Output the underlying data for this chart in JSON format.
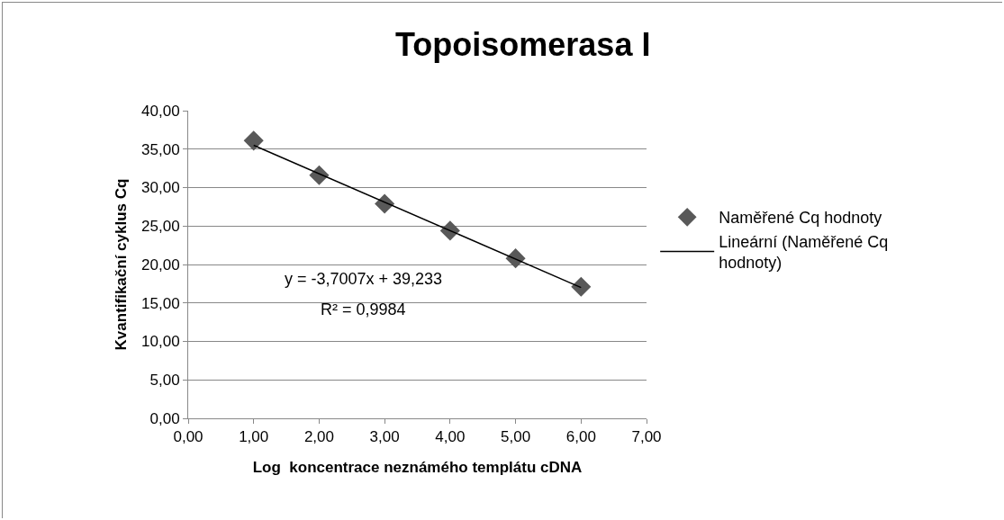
{
  "chart_data": {
    "type": "scatter",
    "title": "Topoisomerasa I",
    "xlabel": "Log  koncentrace neznámého templátu cDNA",
    "ylabel": "Kvantifikační cyklus Cq",
    "x": [
      1,
      2,
      3,
      4,
      5,
      6
    ],
    "series": [
      {
        "name": "Naměřené Cq hodnoty",
        "color": "#595959",
        "values": [
          36.1,
          31.6,
          27.9,
          24.4,
          20.8,
          17.1
        ],
        "marker": "diamond"
      },
      {
        "name": "Lineární (Naměřené Cq hodnoty)",
        "type": "line",
        "color": "#000000",
        "x": [
          1,
          6
        ],
        "values": [
          35.5,
          17.0
        ],
        "marker": "none",
        "line_style": "solid"
      }
    ],
    "annotations": [
      "y = -3,7007x + 39,233",
      "R² = 0,9984"
    ],
    "xlim": [
      0,
      7
    ],
    "xticks": [
      {
        "value": 0,
        "label": "0,00"
      },
      {
        "value": 1,
        "label": "1,00"
      },
      {
        "value": 2,
        "label": "2,00"
      },
      {
        "value": 3,
        "label": "3,00"
      },
      {
        "value": 4,
        "label": "4,00"
      },
      {
        "value": 5,
        "label": "5,00"
      },
      {
        "value": 6,
        "label": "6,00"
      },
      {
        "value": 7,
        "label": "7,00"
      }
    ],
    "ylim": [
      0,
      40
    ],
    "yticks": [
      {
        "value": 0,
        "label": "0,00"
      },
      {
        "value": 5,
        "label": "5,00"
      },
      {
        "value": 10,
        "label": "10,00"
      },
      {
        "value": 15,
        "label": "15,00"
      },
      {
        "value": 20,
        "label": "20,00"
      },
      {
        "value": 25,
        "label": "25,00"
      },
      {
        "value": 30,
        "label": "30,00"
      },
      {
        "value": 35,
        "label": "35,00"
      },
      {
        "value": 40,
        "label": "40,00"
      }
    ],
    "grid": "y",
    "legend": "right"
  }
}
